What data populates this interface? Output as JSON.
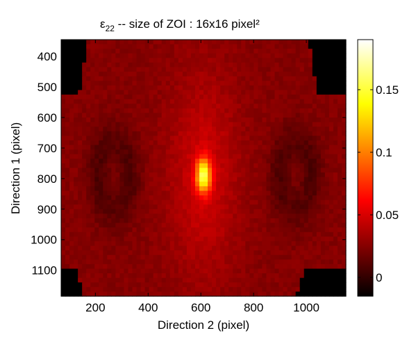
{
  "chart_data": {
    "type": "heatmap",
    "title": "ε22 -- size of ZOI : 16x16 pixel²",
    "title_parts": {
      "symbol": "ε",
      "subscript": "22",
      "rest": " -- size of ZOI : 16x16 pixel²"
    },
    "xlabel": "Direction 2 (pixel)",
    "ylabel": "Direction 1 (pixel)",
    "xlim": [
      70,
      1150
    ],
    "ylim": [
      1185,
      345
    ],
    "y_reversed": true,
    "xticks": [
      200,
      400,
      600,
      800,
      1000
    ],
    "yticks": [
      400,
      500,
      600,
      700,
      800,
      900,
      1000,
      1100
    ],
    "grid": false,
    "colormap": "hot",
    "colorbar": {
      "range": [
        -0.015,
        0.19
      ],
      "ticks": [
        0,
        0.05,
        0.1,
        0.15
      ],
      "tick_labels": [
        "0",
        "0.05",
        "0.1",
        "0.15"
      ]
    },
    "field": {
      "background_value": 0.025,
      "peak": {
        "x": 610,
        "y": 790,
        "value": 0.16
      },
      "central_band": {
        "x_from": 430,
        "x_to": 770,
        "value": 0.045
      },
      "low_arcs": [
        {
          "x": 270,
          "y": 790,
          "value": 0.008
        },
        {
          "x": 960,
          "y": 790,
          "value": 0.008
        }
      ],
      "masked_corners": [
        "top-left",
        "top-right",
        "bottom-left",
        "bottom-right"
      ],
      "mask_value": -0.015
    }
  }
}
